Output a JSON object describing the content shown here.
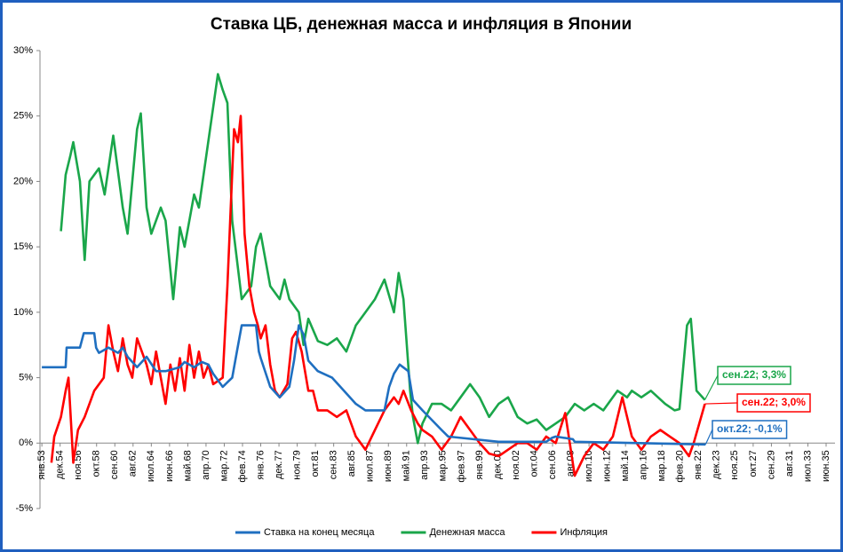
{
  "chart_data": {
    "type": "line",
    "title": "Ставка ЦБ, денежная масса и инфляция в Японии",
    "xlim": [
      1952.8,
      2036.35
    ],
    "ylim": [
      -5,
      30
    ],
    "yticks": [
      {
        "value": -5,
        "label": "-5%"
      },
      {
        "value": 0,
        "label": "0%"
      },
      {
        "value": 5,
        "label": "5%"
      },
      {
        "value": 10,
        "label": "10%"
      },
      {
        "value": 15,
        "label": "15%"
      },
      {
        "value": 20,
        "label": "20%"
      },
      {
        "value": 25,
        "label": "25%"
      },
      {
        "value": 30,
        "label": "30%"
      }
    ],
    "xticks": [
      {
        "value": 1953,
        "label": "янв.53"
      },
      {
        "value": 1954.917,
        "label": "дек.54"
      },
      {
        "value": 1956.833,
        "label": "ноя.56"
      },
      {
        "value": 1958.75,
        "label": "окт.58"
      },
      {
        "value": 1960.667,
        "label": "сен.60"
      },
      {
        "value": 1962.583,
        "label": "авг.62"
      },
      {
        "value": 1964.5,
        "label": "июл.64"
      },
      {
        "value": 1966.417,
        "label": "июн.66"
      },
      {
        "value": 1968.333,
        "label": "май.68"
      },
      {
        "value": 1970.25,
        "label": "апр.70"
      },
      {
        "value": 1972.167,
        "label": "мар.72"
      },
      {
        "value": 1974.083,
        "label": "фев.74"
      },
      {
        "value": 1976,
        "label": "янв.76"
      },
      {
        "value": 1977.917,
        "label": "дек.77"
      },
      {
        "value": 1979.833,
        "label": "ноя.79"
      },
      {
        "value": 1981.75,
        "label": "окт.81"
      },
      {
        "value": 1983.667,
        "label": "сен.83"
      },
      {
        "value": 1985.583,
        "label": "авг.85"
      },
      {
        "value": 1987.5,
        "label": "июл.87"
      },
      {
        "value": 1989.417,
        "label": "июн.89"
      },
      {
        "value": 1991.333,
        "label": "май.91"
      },
      {
        "value": 1993.25,
        "label": "апр.93"
      },
      {
        "value": 1995.167,
        "label": "мар.95"
      },
      {
        "value": 1997.083,
        "label": "фев.97"
      },
      {
        "value": 1999,
        "label": "янв.99"
      },
      {
        "value": 2000.917,
        "label": "дек.00"
      },
      {
        "value": 2002.833,
        "label": "ноя.02"
      },
      {
        "value": 2004.75,
        "label": "окт.04"
      },
      {
        "value": 2006.667,
        "label": "сен.06"
      },
      {
        "value": 2008.583,
        "label": "авг.08"
      },
      {
        "value": 2010.5,
        "label": "июл.10"
      },
      {
        "value": 2012.417,
        "label": "июн.12"
      },
      {
        "value": 2014.333,
        "label": "май.14"
      },
      {
        "value": 2016.25,
        "label": "апр.16"
      },
      {
        "value": 2018.167,
        "label": "мар.18"
      },
      {
        "value": 2020.083,
        "label": "фев.20"
      },
      {
        "value": 2022,
        "label": "янв.22"
      },
      {
        "value": 2023.917,
        "label": "дек.23"
      },
      {
        "value": 2025.833,
        "label": "ноя.25"
      },
      {
        "value": 2027.75,
        "label": "окт.27"
      },
      {
        "value": 2029.667,
        "label": "сен.29"
      },
      {
        "value": 2031.583,
        "label": "авг.31"
      },
      {
        "value": 2033.5,
        "label": "июл.33"
      },
      {
        "value": 2035.417,
        "label": "июн.35"
      }
    ],
    "legend": "bottom",
    "series": [
      {
        "name": "Ставка на конец месяца",
        "color": "#1f6fc0",
        "x": [
          1953,
          1955.5,
          1955.6,
          1957,
          1957.4,
          1958.5,
          1958.7,
          1959,
          1960,
          1961,
          1961.5,
          1962,
          1963,
          1964,
          1965,
          1966,
          1967.5,
          1968,
          1969,
          1969.8,
          1970.5,
          1971,
          1972,
          1973,
          1973.5,
          1974,
          1975.5,
          1975.8,
          1976,
          1977,
          1978,
          1979,
          1979.5,
          1980,
          1980.5,
          1981,
          1982,
          1983.5,
          1986,
          1987,
          1989,
          1989.5,
          1990,
          1990.6,
          1991.5,
          1992,
          1993,
          1995,
          1995.7,
          2001,
          2006,
          2006.6,
          2007,
          2008.8,
          2009,
          2022.75
        ],
        "values": [
          5.8,
          5.8,
          7.3,
          7.3,
          8.4,
          8.4,
          7.3,
          6.9,
          7.3,
          6.9,
          7.3,
          6.6,
          5.8,
          6.6,
          5.5,
          5.5,
          5.8,
          6.2,
          5.8,
          6.2,
          6.0,
          5.3,
          4.3,
          5.0,
          7.0,
          9.0,
          9.0,
          7.0,
          6.5,
          4.3,
          3.5,
          4.3,
          6.3,
          9.0,
          8.3,
          6.3,
          5.5,
          5.0,
          3.0,
          2.5,
          2.5,
          4.3,
          5.3,
          6.0,
          5.5,
          3.3,
          2.5,
          1.0,
          0.5,
          0.1,
          0.1,
          0.4,
          0.5,
          0.3,
          0.1,
          -0.1
        ]
      },
      {
        "name": "Денежная масса",
        "color": "#1aa64a",
        "x": [
          1955,
          1955.5,
          1956,
          1956.3,
          1957,
          1957.5,
          1958,
          1959,
          1959.6,
          1960.5,
          1961.5,
          1962,
          1963,
          1963.4,
          1964,
          1964.5,
          1965.5,
          1966,
          1966.8,
          1967.5,
          1968,
          1969,
          1969.5,
          1971.5,
          1972,
          1972.5,
          1973,
          1974,
          1975,
          1975.5,
          1976,
          1977,
          1978,
          1978.5,
          1979,
          1980,
          1980.5,
          1981,
          1982,
          1983,
          1984,
          1985,
          1986,
          1987,
          1988,
          1989,
          1990,
          1990.5,
          1991,
          1991.7,
          1992,
          1992.5,
          1993,
          1994,
          1995,
          1996,
          1997,
          1998,
          1999,
          2000,
          2001,
          2002,
          2003,
          2004,
          2005,
          2006,
          2007,
          2008,
          2009,
          2010,
          2011,
          2012,
          2013.5,
          2014.5,
          2015,
          2016,
          2017,
          2018.5,
          2019.5,
          2020,
          2020.8,
          2021.2,
          2021.8,
          2022.67
        ],
        "values": [
          16.2,
          20.5,
          22,
          23,
          20,
          14,
          20,
          21,
          19,
          23.5,
          18,
          16,
          24,
          25.2,
          18,
          16,
          18,
          17,
          11,
          16.5,
          15,
          19,
          18,
          28.2,
          27,
          26,
          17,
          11,
          12,
          15,
          16,
          12,
          11,
          12.5,
          11,
          10,
          7.5,
          9.5,
          7.8,
          7.5,
          8,
          7,
          9,
          10,
          11,
          12.5,
          10,
          13,
          11,
          4,
          2,
          0,
          1.5,
          3,
          3,
          2.5,
          3.5,
          4.5,
          3.5,
          2,
          3,
          3.5,
          2,
          1.5,
          1.8,
          1,
          1.5,
          2,
          3,
          2.5,
          3,
          2.5,
          4,
          3.5,
          4,
          3.5,
          4,
          3,
          2.5,
          2.6,
          9,
          9.5,
          4,
          3.3
        ]
      },
      {
        "name": "Инфляция",
        "color": "#ff0000",
        "x": [
          1954,
          1954.3,
          1955,
          1955.5,
          1955.8,
          1956.3,
          1956.8,
          1957.5,
          1958.5,
          1959.5,
          1960,
          1960.5,
          1961,
          1961.5,
          1962,
          1962.5,
          1963,
          1964,
          1964.5,
          1965,
          1965.5,
          1966,
          1966.5,
          1967,
          1967.5,
          1968,
          1968.5,
          1969,
          1969.5,
          1970,
          1970.5,
          1971,
          1972,
          1972.5,
          1973.2,
          1973.6,
          1973.9,
          1974.3,
          1974.8,
          1975.3,
          1975.7,
          1976,
          1976.5,
          1977,
          1977.5,
          1978,
          1978.8,
          1979.3,
          1979.7,
          1980.3,
          1981,
          1981.5,
          1982,
          1983,
          1984,
          1985,
          1986,
          1987,
          1988,
          1989,
          1990,
          1990.5,
          1991,
          1991.8,
          1992.5,
          1993,
          1994,
          1995,
          1996,
          1997,
          1998,
          1999,
          2000,
          2001,
          2002,
          2003,
          2004,
          2005,
          2006,
          2007,
          2008,
          2009,
          2010,
          2011,
          2012,
          2013,
          2014,
          2015,
          2016,
          2017,
          2018,
          2019,
          2020,
          2021,
          2021.5,
          2022.67
        ],
        "values": [
          -1.5,
          0.5,
          2,
          4,
          5,
          -1.5,
          1,
          2,
          4,
          5,
          9,
          7,
          5.5,
          8,
          6,
          5,
          8,
          6,
          4.5,
          7,
          5,
          3,
          6,
          4,
          6.5,
          4,
          7.5,
          5,
          7,
          5,
          6,
          4.5,
          5,
          12,
          24,
          23,
          25,
          16,
          12,
          10,
          9,
          8,
          9,
          6,
          4,
          3.5,
          4.5,
          8,
          8.5,
          7,
          4,
          4,
          2.5,
          2.5,
          2,
          2.5,
          0.5,
          -0.5,
          1,
          2.5,
          3.5,
          3,
          4,
          2.5,
          1.5,
          1,
          0.5,
          -0.5,
          0.5,
          2,
          1,
          0,
          -0.8,
          -1,
          -0.5,
          0,
          0,
          -0.5,
          0.5,
          0,
          2.3,
          -2.5,
          -1,
          0,
          -0.5,
          0.5,
          3.5,
          0.5,
          -0.5,
          0.5,
          1,
          0.5,
          0,
          -1,
          0,
          3.0
        ]
      }
    ],
    "annotations": [
      {
        "text": "сен.22; 3,3%",
        "color": "#1aa64a"
      },
      {
        "text": "сен.22; 3,0%",
        "color": "#ff0000"
      },
      {
        "text": "окт.22; -0,1%",
        "color": "#1f6fc0"
      }
    ]
  }
}
